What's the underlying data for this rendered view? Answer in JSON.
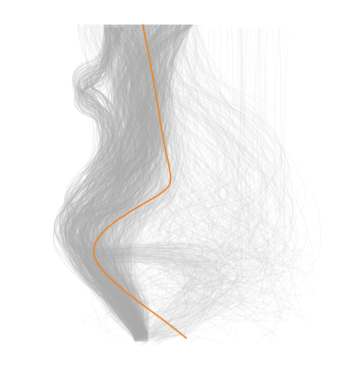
{
  "chart_data": {
    "type": "line",
    "description_free": true,
    "background_color": "#ffffff",
    "bundle_color": "#b0b0b0",
    "faint_color": "#c8c8c8",
    "highlight_color": "#e8862a",
    "grid": false,
    "legend": "none",
    "axes_visible": false,
    "series": [
      {
        "role": "highlight",
        "points": [
          [
            0.0,
            0.0
          ],
          [
            0.01,
            0.08
          ],
          [
            0.02,
            0.18
          ],
          [
            0.03,
            0.28
          ],
          [
            0.04,
            0.35
          ],
          [
            0.035,
            0.38
          ],
          [
            -0.02,
            0.43
          ],
          [
            -0.06,
            0.48
          ],
          [
            -0.07,
            0.52
          ],
          [
            -0.06,
            0.56
          ],
          [
            -0.02,
            0.62
          ],
          [
            0.03,
            0.68
          ],
          [
            0.06,
            0.72
          ]
        ]
      }
    ]
  }
}
